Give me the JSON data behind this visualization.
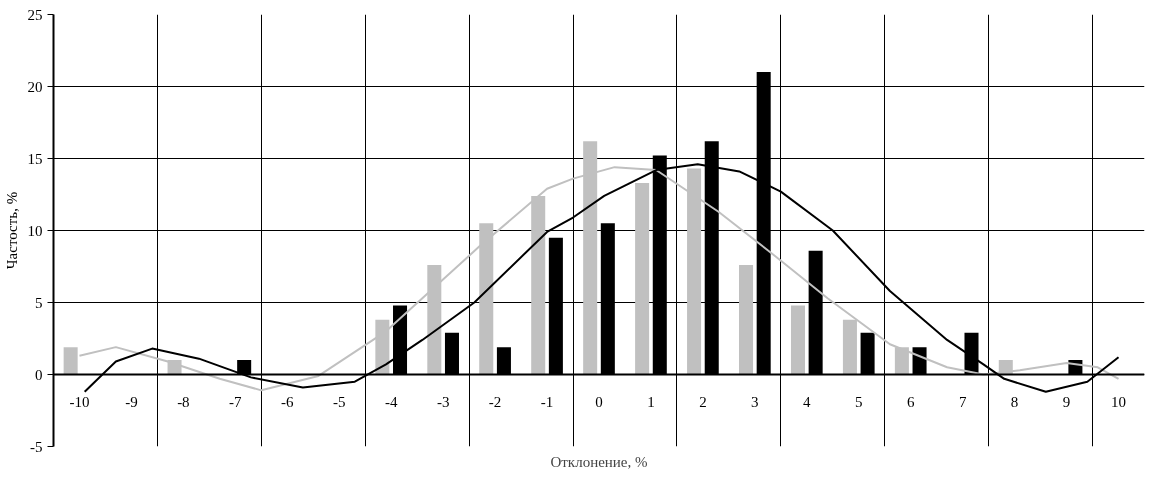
{
  "chart_data": {
    "type": "bar",
    "xlabel": "Отклонение, %",
    "ylabel": "Частость, %",
    "x": [
      -10,
      -9,
      -8,
      -7,
      -6,
      -5,
      -4,
      -3,
      -2,
      -1,
      0,
      1,
      2,
      3,
      4,
      5,
      6,
      7,
      8,
      9,
      10
    ],
    "series": [
      {
        "color": "#c0c0c0",
        "values": [
          1.9,
          0,
          1.0,
          0,
          0,
          0,
          3.8,
          7.6,
          10.5,
          12.4,
          16.2,
          13.3,
          14.3,
          7.6,
          4.8,
          3.8,
          1.9,
          0,
          1.0,
          0,
          0
        ]
      },
      {
        "color": "#000000",
        "values": [
          0,
          0,
          0,
          1.0,
          0,
          0,
          4.8,
          2.9,
          1.9,
          9.5,
          10.5,
          15.2,
          16.2,
          21.0,
          8.6,
          2.9,
          1.9,
          2.9,
          0,
          1.0,
          0
        ]
      },
      {
        "type": "line",
        "color": "#c0c0c0",
        "x": [
          -10,
          -9.3,
          -8.3,
          -7.3,
          -6.5,
          -5.4,
          -4.1,
          -2.3,
          -1.0,
          -0.5,
          0.3,
          1.1,
          2.3,
          3.4,
          4.4,
          5.6,
          6.7,
          7.4,
          8.1,
          9.0,
          9.6,
          10
        ],
        "values": [
          1.3,
          1.9,
          0.9,
          -0.3,
          -1.1,
          -0.1,
          3.0,
          8.9,
          12.9,
          13.6,
          14.4,
          14.2,
          11.3,
          8.2,
          5.3,
          2.1,
          0.5,
          0.0,
          0.3,
          0.8,
          0.5,
          -0.3
        ]
      },
      {
        "type": "line",
        "color": "#000000",
        "x": [
          -9.9,
          -9.3,
          -8.6,
          -7.7,
          -6.7,
          -5.7,
          -4.7,
          -4.1,
          -3.4,
          -2.4,
          -1.0,
          -0.5,
          0.1,
          1.1,
          1.9,
          2.7,
          3.5,
          4.5,
          5.6,
          6.7,
          7.4,
          7.8,
          8.6,
          9.4,
          10
        ],
        "values": [
          -1.2,
          0.9,
          1.8,
          1.1,
          -0.2,
          -0.9,
          -0.5,
          0.7,
          2.4,
          5.0,
          9.9,
          10.9,
          12.4,
          14.2,
          14.6,
          14.1,
          12.7,
          10.0,
          5.8,
          2.4,
          0.7,
          -0.3,
          -1.2,
          -0.5,
          1.2
        ]
      }
    ],
    "xlim": [
      -10.5,
      10.5
    ],
    "xticks": [
      -10,
      -9,
      -8,
      -7,
      -6,
      -5,
      -4,
      -3,
      -2,
      -1,
      0,
      1,
      2,
      3,
      4,
      5,
      6,
      7,
      8,
      9,
      10,
      {
        "value": -8.5,
        "label": null
      },
      {
        "value": -6.5,
        "label": null
      },
      {
        "value": -4.5,
        "label": null
      },
      {
        "value": -2.5,
        "label": null
      },
      {
        "value": -0.5,
        "label": null
      },
      {
        "value": 1.5,
        "label": null
      },
      {
        "value": 3.5,
        "label": null
      },
      {
        "value": 5.5,
        "label": null
      },
      {
        "value": 7.5,
        "label": null
      },
      {
        "value": 9.5,
        "label": null
      }
    ],
    "ylim": [
      -5,
      25
    ],
    "yticks": [
      -5,
      0,
      5,
      10,
      15,
      20,
      25
    ],
    "grid": true
  }
}
